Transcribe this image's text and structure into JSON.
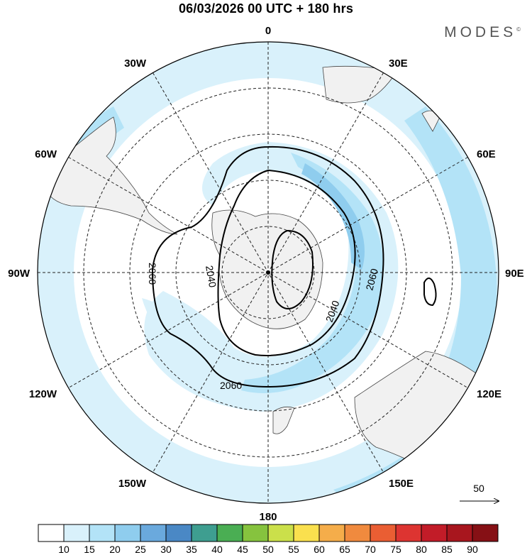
{
  "header": {
    "title": "06/03/2026  00 UTC  + 180 hrs",
    "brand": "MODES",
    "brand_mark": "©"
  },
  "map": {
    "projection": "south polar stereographic",
    "longitude_labels": [
      "0",
      "30E",
      "60E",
      "90E",
      "120E",
      "150E",
      "180",
      "150W",
      "120W",
      "90W",
      "60W",
      "30W"
    ],
    "contour_labels": [
      "2060",
      "2040",
      "2060",
      "2040",
      "2060"
    ],
    "wind_reference_vector": "50"
  },
  "colorbar": {
    "ticks": [
      "10",
      "15",
      "20",
      "25",
      "30",
      "35",
      "40",
      "45",
      "50",
      "55",
      "60",
      "65",
      "70",
      "75",
      "80",
      "85",
      "90"
    ],
    "colors": [
      "#ffffff",
      "#d9f1fb",
      "#b3e3f7",
      "#8fcdee",
      "#6aa9dd",
      "#4a88c5",
      "#3e9e90",
      "#4aae53",
      "#86c33e",
      "#cbe04a",
      "#fae04e",
      "#f5ad4a",
      "#f08a3e",
      "#ea5e33",
      "#dd3431",
      "#c21c28",
      "#a8161e",
      "#861015"
    ]
  }
}
